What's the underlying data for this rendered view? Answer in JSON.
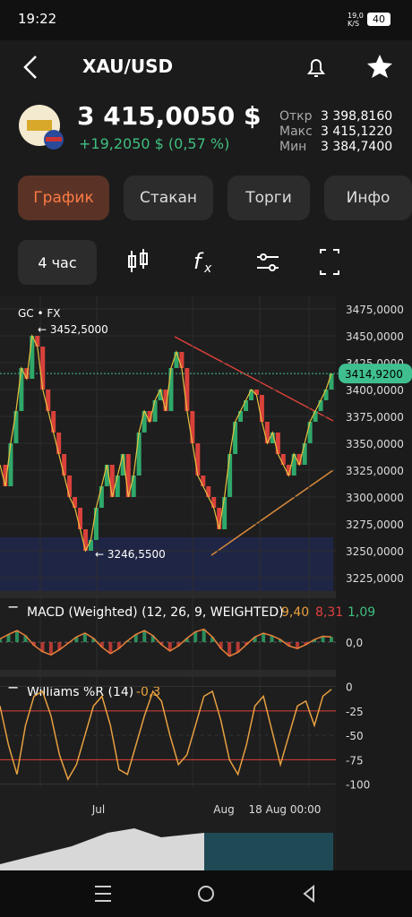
{
  "status_bar": {
    "time": "19:22",
    "speed": "19,0 K/S",
    "battery": "40"
  },
  "header": {
    "title": "XAU/USD"
  },
  "quote": {
    "price": "3 415,0050 $",
    "change": "+19,2050 $ (0,57 %)",
    "stats": [
      {
        "label": "Откр",
        "value": "3 398,8160"
      },
      {
        "label": "Макс",
        "value": "3 415,1220"
      },
      {
        "label": "Мин",
        "value": "3 384,7400"
      }
    ]
  },
  "tabs": [
    "График",
    "Стакан",
    "Торги",
    "Инфо"
  ],
  "toolbar": {
    "interval": "4 час"
  },
  "price_chart": {
    "source": "GC • FX",
    "ylim": [
      3212.5,
      3487.5
    ],
    "yticks": [
      {
        "value": 3475,
        "label": "3475,0000"
      },
      {
        "value": 3450,
        "label": "3450,0000"
      },
      {
        "value": 3425,
        "label": "3425,0000"
      },
      {
        "value": 3400,
        "label": "3400,0000"
      },
      {
        "value": 3375,
        "label": "3375,0000"
      },
      {
        "value": 3350,
        "label": "3350,0000"
      },
      {
        "value": 3325,
        "label": "3325,0000"
      },
      {
        "value": 3300,
        "label": "3300,0000"
      },
      {
        "value": 3275,
        "label": "3275,0000"
      },
      {
        "value": 3250,
        "label": "3250,0000"
      },
      {
        "value": 3225,
        "label": "3225,0000"
      }
    ],
    "current": {
      "value": 3414.92,
      "label": "3414,9200"
    },
    "high_label": "← 3452,5000",
    "low_label": "← 3246,5500",
    "closes": [
      3330,
      3310,
      3350,
      3380,
      3420,
      3410,
      3450,
      3440,
      3400,
      3380,
      3360,
      3340,
      3320,
      3300,
      3290,
      3270,
      3250,
      3260,
      3290,
      3310,
      3330,
      3300,
      3320,
      3340,
      3300,
      3320,
      3360,
      3380,
      3370,
      3390,
      3400,
      3380,
      3420,
      3435,
      3420,
      3380,
      3350,
      3320,
      3310,
      3300,
      3290,
      3270,
      3300,
      3340,
      3370,
      3380,
      3390,
      3400,
      3395,
      3370,
      3350,
      3360,
      3340,
      3330,
      3320,
      3340,
      3330,
      3350,
      3370,
      3380,
      3390,
      3400,
      3415
    ]
  },
  "macd": {
    "title": "MACD (Weighted) (12, 26, 9, WEIGHTED)",
    "v1": "9,40",
    "v2": "8,31",
    "v3": "1,09",
    "ylim": [
      -35,
      35
    ],
    "yticks": [
      {
        "value": 0,
        "label": "0,0"
      }
    ],
    "values": [
      5,
      12,
      18,
      10,
      -5,
      -15,
      -20,
      -12,
      -2,
      8,
      14,
      6,
      -8,
      -18,
      -10,
      2,
      12,
      18,
      10,
      -4,
      -14,
      -6,
      6,
      16,
      20,
      8,
      -10,
      -22,
      -16,
      -4,
      8,
      14,
      10,
      4,
      -6,
      -10,
      -4,
      4,
      9,
      8
    ]
  },
  "williams": {
    "title": "Williams %R (14)",
    "value": "-0,3",
    "ylim": [
      -104,
      6
    ],
    "yticks": [
      0,
      -25,
      -50,
      -75,
      -100
    ],
    "values": [
      -20,
      -60,
      -90,
      -40,
      -10,
      -5,
      -30,
      -70,
      -95,
      -80,
      -50,
      -20,
      -10,
      -40,
      -85,
      -90,
      -60,
      -30,
      -5,
      -15,
      -50,
      -80,
      -70,
      -40,
      -10,
      -5,
      -35,
      -75,
      -90,
      -60,
      -20,
      -10,
      -45,
      -80,
      -50,
      -20,
      -15,
      -40,
      -10,
      -3
    ]
  },
  "x_labels": [
    "Jul",
    "Aug",
    "18 Aug 00:00"
  ]
}
